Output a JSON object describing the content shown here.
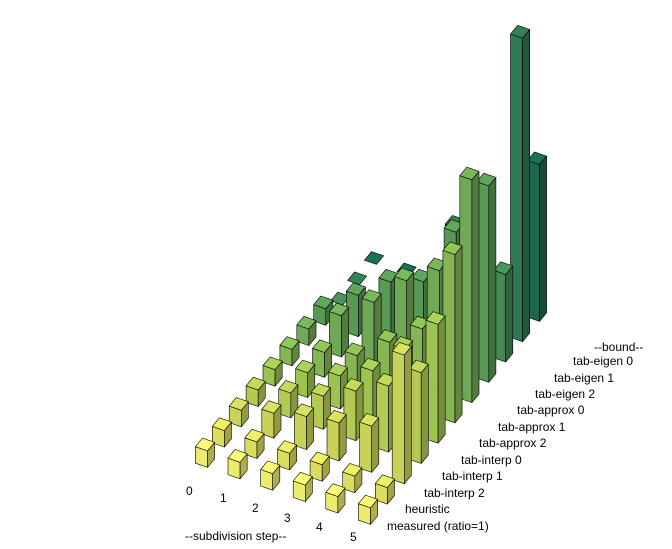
{
  "chart_data": {
    "type": "bar3d",
    "x_axis_title": "--subdivision step--",
    "y_axis_title": "--bound--",
    "x_categories": [
      "0",
      "1",
      "2",
      "3",
      "4",
      "5"
    ],
    "y_categories": [
      "measured (ratio=1)",
      "heuristic",
      "tab-interp 2",
      "tab-interp 1",
      "tab-interp 0",
      "tab-approx 2",
      "tab-approx 1",
      "tab-approx 0",
      "tab-eigen 2",
      "tab-eigen 1",
      "tab-eigen 0"
    ],
    "colors": [
      "#ffff77",
      "#eef066",
      "#d8e460",
      "#c3db5b",
      "#aad357",
      "#91c65a",
      "#79b85c",
      "#60a65d",
      "#4a955d",
      "#338259",
      "#1e7055"
    ],
    "values": [
      [
        1,
        1,
        1,
        1,
        1,
        1
      ],
      [
        1,
        1,
        1,
        1,
        1,
        1
      ],
      [
        1,
        1.5,
        2,
        2.3,
        2.8,
        7.8
      ],
      [
        1,
        1.5,
        2,
        3,
        4,
        5.5
      ],
      [
        1,
        1.5,
        2,
        3,
        5,
        7.2
      ],
      [
        1,
        1.5,
        2,
        3.5,
        5,
        10.2
      ],
      [
        1,
        2.5,
        4,
        6,
        7.3,
        13.5
      ],
      [
        1,
        2.5,
        4,
        4.7,
        8.4,
        11.9
      ],
      [
        0,
        0,
        0,
        3.5,
        0,
        5.3
      ],
      [
        0,
        0,
        0,
        5.5,
        0,
        18.4
      ],
      [
        0,
        0,
        0,
        5.3,
        0,
        9.5
      ]
    ]
  }
}
